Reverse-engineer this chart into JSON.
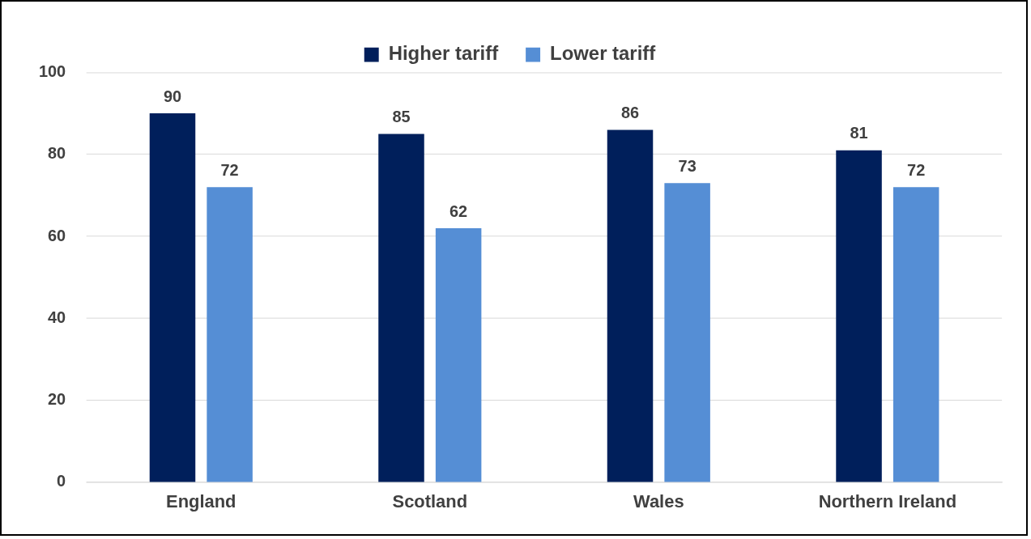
{
  "chart_data": {
    "type": "bar",
    "categories": [
      "England",
      "Scotland",
      "Wales",
      "Northern Ireland"
    ],
    "series": [
      {
        "name": "Higher tariff",
        "color": "#001f5b",
        "values": [
          90,
          85,
          86,
          81
        ]
      },
      {
        "name": "Lower tariff",
        "color": "#558ed5",
        "values": [
          72,
          62,
          73,
          72
        ]
      }
    ],
    "ylim": [
      0,
      100
    ],
    "yticks": [
      0,
      20,
      40,
      60,
      80,
      100
    ],
    "grid": "y",
    "legend": "top",
    "data_labels": true
  }
}
